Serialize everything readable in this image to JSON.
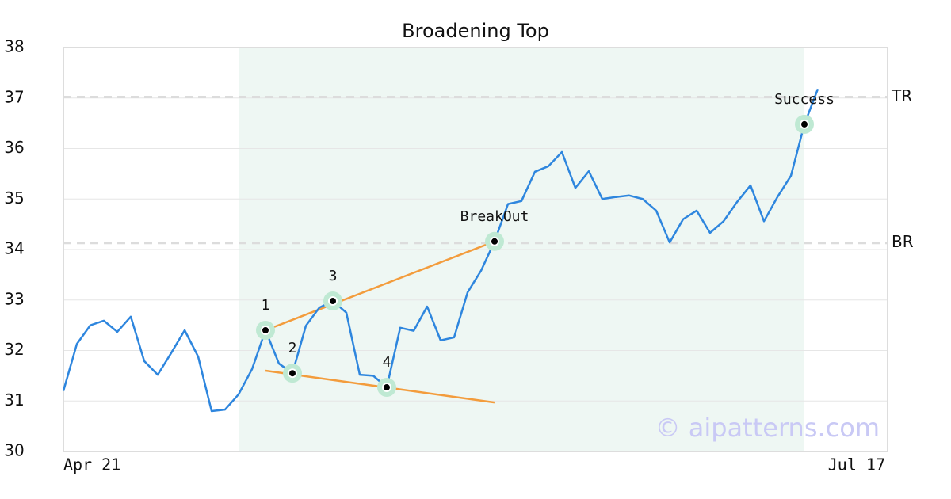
{
  "chart_data": {
    "type": "line",
    "title": "Broadening Top",
    "categories": [
      "Apr 21",
      null,
      null,
      null,
      null,
      null,
      null,
      null,
      null,
      null,
      null,
      null,
      null,
      null,
      null,
      null,
      null,
      null,
      null,
      null,
      null,
      null,
      null,
      null,
      null,
      null,
      null,
      null,
      null,
      null,
      null,
      null,
      null,
      null,
      null,
      null,
      null,
      null,
      null,
      null,
      null,
      null,
      null,
      null,
      null,
      null,
      null,
      null,
      null,
      null,
      null,
      null,
      null,
      null,
      null,
      null,
      "Jul 17"
    ],
    "series": [
      {
        "color": "#2e86de",
        "values": [
          31.2,
          32.13,
          32.5,
          32.59,
          32.37,
          32.67,
          31.79,
          31.52,
          31.95,
          32.4,
          31.88,
          30.8,
          30.83,
          31.13,
          31.63,
          32.4,
          31.74,
          31.55,
          32.49,
          32.85,
          32.98,
          32.75,
          31.52,
          31.5,
          31.27,
          32.45,
          32.39,
          32.87,
          32.2,
          32.26,
          33.15,
          33.58,
          34.16,
          34.9,
          34.96,
          35.54,
          35.65,
          35.93,
          35.22,
          35.55,
          35.0,
          35.04,
          35.07,
          35.0,
          34.77,
          34.14,
          34.6,
          34.77,
          34.33,
          34.56,
          34.94,
          35.27,
          34.56,
          35.04,
          35.46,
          36.48,
          37.18
        ]
      }
    ],
    "ylim": [
      30,
      38
    ],
    "yticks": [
      30,
      31,
      32,
      33,
      34,
      35,
      36,
      37,
      38
    ],
    "grid": true,
    "highlight_range": [
      13,
      55
    ],
    "highlight_color": "#eef7f3",
    "reference_lines": [
      {
        "label": "TR",
        "value": 37.02
      },
      {
        "label": "BR",
        "value": 34.13
      }
    ],
    "trendlines": [
      {
        "color": "#f39c3c",
        "x": [
          15,
          32
        ],
        "y": [
          32.4,
          34.16
        ]
      },
      {
        "color": "#f39c3c",
        "x": [
          15,
          32
        ],
        "y": [
          31.6,
          30.97
        ]
      }
    ],
    "annotations": [
      {
        "label": "1",
        "x": 15,
        "value": 32.4
      },
      {
        "label": "2",
        "x": 17,
        "value": 31.55
      },
      {
        "label": "3",
        "x": 20,
        "value": 32.98
      },
      {
        "label": "4",
        "x": 24,
        "value": 31.27
      },
      {
        "label": "BreakOut",
        "x": 32,
        "value": 34.16
      },
      {
        "label": "Success",
        "x": 55,
        "value": 36.48
      }
    ],
    "watermark": "© aipatterns.com"
  }
}
